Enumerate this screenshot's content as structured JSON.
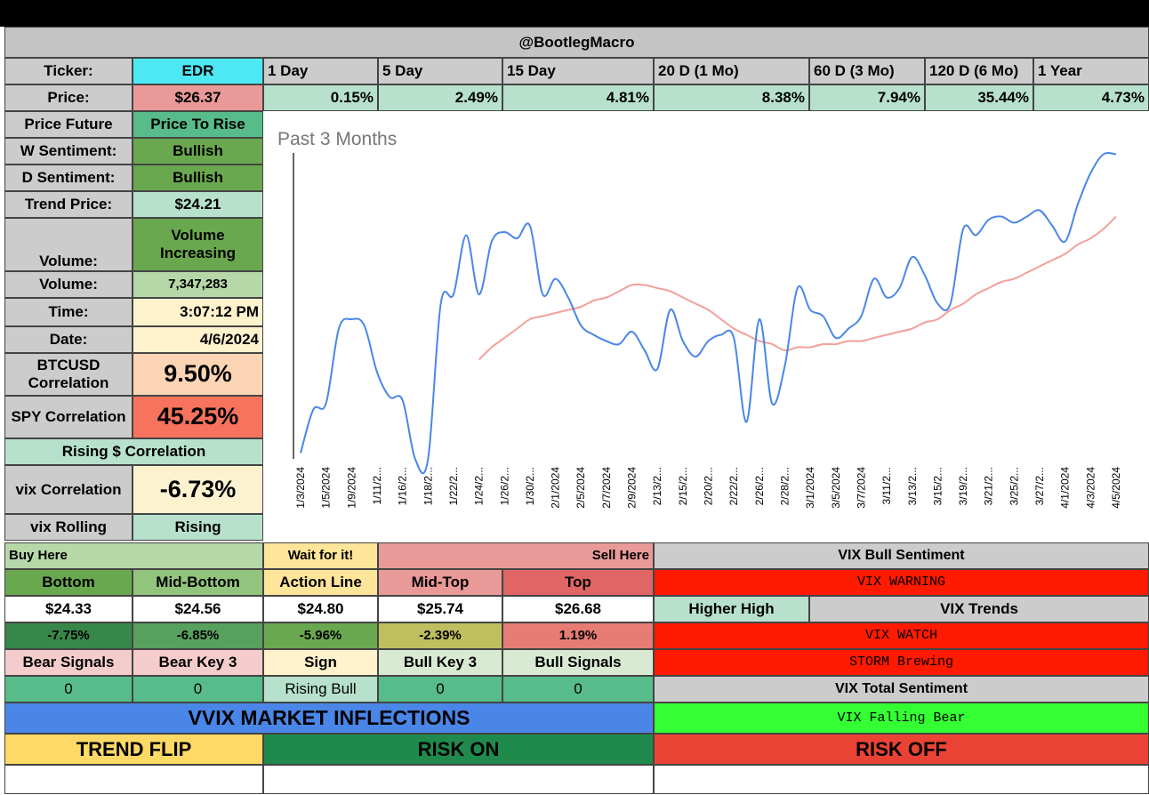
{
  "header": {
    "title": "@BootlegMacro"
  },
  "ticker": {
    "label": "Ticker:",
    "value": "EDR",
    "periods": [
      "1 Day",
      "5 Day",
      "15 Day",
      "20 D (1 Mo)",
      "60 D (3 Mo)",
      "120 D (6 Mo)",
      "1 Year"
    ]
  },
  "price": {
    "label": "Price:",
    "value": "$26.37",
    "changes": [
      "0.15%",
      "2.49%",
      "4.81%",
      "8.38%",
      "7.94%",
      "35.44%",
      "4.73%"
    ]
  },
  "stats": [
    {
      "label": "Price Future",
      "value": "Price To Rise"
    },
    {
      "label": "W Sentiment:",
      "value": "Bullish"
    },
    {
      "label": "D Sentiment:",
      "value": "Bullish"
    },
    {
      "label": "Trend Price:",
      "value": "$24.21"
    },
    {
      "label": "Volume:",
      "value": "Volume Increasing"
    },
    {
      "label": "Volume:",
      "value": "7,347,283"
    },
    {
      "label": "Time:",
      "value": "3:07:12 PM"
    },
    {
      "label": "Date:",
      "value": "4/6/2024"
    },
    {
      "label": "BTCUSD Correlation",
      "value": "9.50%"
    },
    {
      "label": "SPY Correlation",
      "value": "45.25%"
    },
    {
      "label": "Rising $ Correlation"
    },
    {
      "label": "vix Correlation",
      "value": "-6.73%"
    },
    {
      "label": "vix Rolling",
      "value": "Rising"
    }
  ],
  "levels": {
    "zones": [
      "Buy Here",
      "Wait for it!",
      "Sell Here"
    ],
    "names": [
      "Bottom",
      "Mid-Bottom",
      "Action Line",
      "Mid-Top",
      "Top"
    ],
    "prices": [
      "$24.33",
      "$24.56",
      "$24.80",
      "$25.74",
      "$26.68"
    ],
    "changes": [
      "-7.75%",
      "-6.85%",
      "-5.96%",
      "-2.39%",
      "1.19%"
    ]
  },
  "signals": {
    "names": [
      "Bear Signals",
      "Bear Key 3",
      "Sign",
      "Bull Key 3",
      "Bull Signals"
    ],
    "values": [
      "0",
      "0",
      "Rising Bull",
      "0",
      "0"
    ]
  },
  "vix": {
    "bull_sentiment_title": "VIX Bull Sentiment",
    "warning": "VIX WARNING",
    "higher_high": "Higher High",
    "trends": "VIX Trends",
    "watch": "VIX WATCH",
    "storm": "STORM Brewing",
    "total_title": "VIX Total Sentiment",
    "total": "VIX Falling Bear"
  },
  "vvix": {
    "title": "VVIX MARKET INFLECTIONS",
    "trend_flip": "TREND FLIP",
    "risk_on": "RISK ON",
    "risk_off": "RISK OFF"
  },
  "chart_data": {
    "type": "line",
    "title": "Past 3 Months",
    "categories": [
      "1/3/2024",
      null,
      "1/5/2024",
      null,
      "1/9/2024",
      null,
      "1/11/2...",
      null,
      "1/16/2...",
      null,
      "1/18/2...",
      null,
      "1/22/2...",
      null,
      "1/24/2...",
      null,
      "1/26/2...",
      null,
      "1/30/2...",
      null,
      "2/1/2024",
      null,
      "2/5/2024",
      null,
      "2/7/2024",
      null,
      "2/9/2024",
      null,
      "2/13/2...",
      null,
      "2/15/2...",
      null,
      "2/20/2...",
      null,
      "2/22/2...",
      null,
      "2/26/2...",
      null,
      "2/28/2...",
      null,
      "3/1/2024",
      null,
      "3/5/2024",
      null,
      "3/7/2024",
      null,
      "3/11/2...",
      null,
      "3/13/2...",
      null,
      "3/15/2...",
      null,
      "3/19/2...",
      null,
      "3/21/2...",
      null,
      "3/25/2...",
      null,
      "3/27/2...",
      null,
      "4/1/2024",
      null,
      "4/3/2024",
      null,
      "4/5/2024"
    ],
    "series": [
      {
        "color": "#4a86e8",
        "values": [
          3,
          17,
          19,
          43,
          46,
          44,
          29,
          21,
          20,
          1,
          1,
          51,
          54,
          73,
          54,
          71,
          74,
          72,
          76,
          54,
          59,
          53,
          44,
          41,
          39,
          38,
          42,
          36,
          30,
          49,
          39,
          34,
          39,
          41,
          40,
          13,
          46,
          19,
          31,
          56,
          49,
          47,
          40,
          43,
          47,
          59,
          53,
          56,
          66,
          60,
          51,
          51,
          75,
          73,
          78,
          79,
          77,
          79,
          81,
          76,
          71,
          83,
          93,
          99,
          99
        ]
      },
      {
        "color": "#f4a09a",
        "values": [
          null,
          null,
          null,
          null,
          null,
          null,
          null,
          null,
          null,
          null,
          null,
          null,
          null,
          null,
          33,
          37,
          40,
          43,
          46,
          47,
          48,
          49,
          50,
          52,
          53,
          55,
          57,
          57,
          56,
          55,
          53,
          51,
          49,
          46,
          43,
          41,
          39,
          38,
          36,
          37,
          37,
          38,
          38,
          39,
          39,
          40,
          41,
          42,
          43,
          45,
          46,
          49,
          51,
          54,
          56,
          58,
          59,
          61,
          63,
          65,
          67,
          70,
          72,
          75,
          79
        ]
      }
    ],
    "ylim": [
      0,
      100
    ]
  }
}
